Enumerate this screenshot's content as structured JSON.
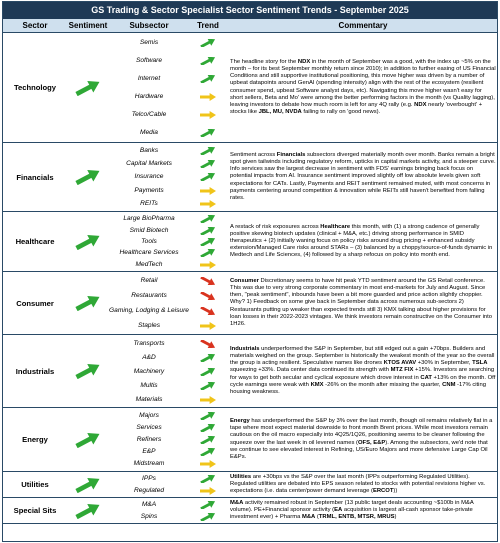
{
  "title": "GS Trading & Sector Specialist Sector Sentiment Trends - September 2025",
  "headers": {
    "sector": "Sector",
    "sentiment": "Sentiment",
    "subsector": "Subsector",
    "trend": "Trend",
    "commentary": "Commentary"
  },
  "colors": {
    "up": "#2fa836",
    "flat": "#f0c419",
    "down": "#d9331f",
    "header_bg": "#1f3a56",
    "subheader_bg": "#cfe0ee"
  },
  "rows": [
    {
      "sector": "Technology",
      "sentiment": "up",
      "subsectors": [
        {
          "name": "Semis",
          "trend": "up"
        },
        {
          "name": "Software",
          "trend": "up"
        },
        {
          "name": "Internet",
          "trend": "up"
        },
        {
          "name": "Hardware",
          "trend": "flat"
        },
        {
          "name": "Telco/Cable",
          "trend": "flat"
        },
        {
          "name": "Media",
          "trend": "up"
        }
      ],
      "commentary": [
        {
          "t": "The headline story for the "
        },
        {
          "t": "NDX",
          "b": true
        },
        {
          "t": " in the month of September was a good, with the index up ~5% on the month – for its best September monthly return since 2010); in addition to further easing of US Financial Conditions and still supportive institutional positioning, this move higher was driven by a number of upbeat datapoints around GenAI (spending intensity) align with the rest of the ecosystem (resilient consumer spend, upbeat Software analyst days, etc). Navigating this move higher wasn't easy for short sellers, Beta and Mo' were among the better performing factors in the month (vs Quality lagging), leaving investors to debate how much room is left for any 4Q rally (e.g. "
        },
        {
          "t": "NDX",
          "b": true
        },
        {
          "t": " nearly 'overbought' + stocks like "
        },
        {
          "t": "JBL, MU, NVDA",
          "b": true
        },
        {
          "t": " failing to rally on 'good news)."
        }
      ]
    },
    {
      "sector": "Financials",
      "sentiment": "up",
      "subsectors": [
        {
          "name": "Banks",
          "trend": "up"
        },
        {
          "name": "Capital Markets",
          "trend": "up"
        },
        {
          "name": "Insurance",
          "trend": "up"
        },
        {
          "name": "Payments",
          "trend": "flat"
        },
        {
          "name": "REITs",
          "trend": "flat"
        }
      ],
      "commentary": [
        {
          "t": "Sentiment across "
        },
        {
          "t": "Financials",
          "b": true
        },
        {
          "t": " subsectors diverged materially month over month. Banks remain a bright spot given tailwinds including regulatory reform, upticks in capital markets activity, and a steeper curve. Info services saw the largest decrease in sentiment  with FDS' earnings bringing back focus on potential impacts from AI. Insurance sentiment improved slightly off low absolute levels given soft expectations for CATs. Lastly, Payments and REIT sentiment remained muted, with most concerns in payments centering around competition & innovation while REITs still haven't benefited from falling rates."
        }
      ]
    },
    {
      "sector": "Healthcare",
      "sentiment": "up",
      "subsectors": [
        {
          "name": "Large BioPharma",
          "trend": "up"
        },
        {
          "name": "Smid Biotech",
          "trend": "up"
        },
        {
          "name": "Tools",
          "trend": "up"
        },
        {
          "name": "Healthcare Services",
          "trend": "up"
        },
        {
          "name": "MedTech",
          "trend": "flat"
        }
      ],
      "commentary": [
        {
          "t": "A restack of risk exposures across "
        },
        {
          "t": "Healthcare",
          "b": true
        },
        {
          "t": " this month, with (1) a strong cadence of generally positive skewing biotech updates (clinical + M&A, etc.) driving strong performance in SMID therapeutics + (2) initially waning focus on policy risks around drug pricing + enhanced subsidy extension/Managed Care risks around STARs – (3) balanced by a choppy/source-of-funds dynamic in Medtech and Life Sciences, (4) followed by a sharp refocus on policy into month end."
        }
      ]
    },
    {
      "sector": "Consumer",
      "sentiment": "up",
      "subsectors": [
        {
          "name": "Retail",
          "trend": "down"
        },
        {
          "name": "Restaurants",
          "trend": "down"
        },
        {
          "name": "Gaming, Lodging & Leisure",
          "trend": "down"
        },
        {
          "name": "Staples",
          "trend": "flat"
        }
      ],
      "commentary": [
        {
          "t": "Consumer",
          "b": true
        },
        {
          "t": " Discretionary seems to have hit peak YTD sentiment around the GS Retail conference. This was due to very strong corporate commentary in most end-markets for July and August. Since then, \"peak sentiment\", inbounds have been a bit more guarded and price action slightly choppier. Why? 1) Feedback on some give back in September data across numerous sub-sectors 2) Restaurants putting up weaker than expected trends still 3) KMX talking about higher provisions for loan losses in their 2022-2023 vintages. We think investors remain constructive on the Consumer into 1H26."
        }
      ]
    },
    {
      "sector": "Industrials",
      "sentiment": "up",
      "subsectors": [
        {
          "name": "Transports",
          "trend": "down"
        },
        {
          "name": "A&D",
          "trend": "up"
        },
        {
          "name": "Machinery",
          "trend": "up"
        },
        {
          "name": "Multis",
          "trend": "up"
        },
        {
          "name": "Materials",
          "trend": "flat"
        }
      ],
      "commentary": [
        {
          "t": "Industrials",
          "b": true
        },
        {
          "t": " underperformed the S&P in September, but still edged out a gain +70bps. Builders and materials weighed on the group. September is historically the weakest month of the year so the overall the group is acting resilient. Speculative names like drones "
        },
        {
          "t": "KTOS AVAV",
          "b": true
        },
        {
          "t": " +30% in September, "
        },
        {
          "t": "TSLA",
          "b": true
        },
        {
          "t": " squeezing +33%. Data center data continued its strength with "
        },
        {
          "t": "MTZ FIX",
          "b": true
        },
        {
          "t": " +15%. Investors are searching for ways to get both secular and cyclical exposure which drove interest in "
        },
        {
          "t": "CAT",
          "b": true
        },
        {
          "t": " +13% on the month. Off cycle earnings were weak with "
        },
        {
          "t": "KMX",
          "b": true
        },
        {
          "t": " -26% on the month after missing the quarter, "
        },
        {
          "t": "CNM",
          "b": true
        },
        {
          "t": " -17% citing housing weakness."
        }
      ]
    },
    {
      "sector": "Energy",
      "sentiment": "up",
      "subsectors": [
        {
          "name": "Majors",
          "trend": "up"
        },
        {
          "name": "Services",
          "trend": "up"
        },
        {
          "name": "Refiners",
          "trend": "up"
        },
        {
          "name": "E&P",
          "trend": "up"
        },
        {
          "name": "Midstream",
          "trend": "flat"
        }
      ],
      "commentary": [
        {
          "t": "Energy",
          "b": true
        },
        {
          "t": " has underperformed the S&P by 3% over the last month, though oil remains relatively flat in a tape where most expect material downside to front month Brent prices. While most investors remain cautious on the oil macro especially into 4Q25/1Q26, positioning seems to be cleaner following the squeeze over the last week in oil levered names ("
        },
        {
          "t": "OFS, E&P",
          "b": true
        },
        {
          "t": "). Among the subsectors, we'd note that we continue to see elevated interest in Refining, US/Euro Majors and more defensive Large Cap Oil E&Ps."
        }
      ]
    },
    {
      "sector": "Utilities",
      "sentiment": "up",
      "subsectors": [
        {
          "name": "IPPs",
          "trend": "up"
        },
        {
          "name": "Regulated",
          "trend": "flat"
        }
      ],
      "commentary": [
        {
          "t": "Utilities",
          "b": true
        },
        {
          "t": " are +30bps vs the S&P over the last month (IPPs outperforming Regulated Utilities). Regulated utilities are debated into EPS season related to stocks with potential revisions higher vs. expectations (i.e. data center/power demand leverage ("
        },
        {
          "t": "ERCOT",
          "b": true
        },
        {
          "t": "))"
        }
      ]
    },
    {
      "sector": "Special Sits",
      "sentiment": "up",
      "subsectors": [
        {
          "name": "M&A",
          "trend": "up"
        },
        {
          "name": "Spins",
          "trend": "up"
        }
      ],
      "commentary": [
        {
          "t": "M&A",
          "b": true
        },
        {
          "t": " activity remained robust in September (13 public target deals accounting ~$100b in M&A volume). PE+Financial sponsor activity ("
        },
        {
          "t": "EA",
          "b": true
        },
        {
          "t": " acquisition is largest all-cash sponsor take-private investment ever) + Pharma "
        },
        {
          "t": "M&A",
          "b": true
        },
        {
          "t": " ("
        },
        {
          "t": "TRML, ENTB, MTSR, MRUS",
          "b": true
        },
        {
          "t": ")"
        }
      ]
    }
  ]
}
